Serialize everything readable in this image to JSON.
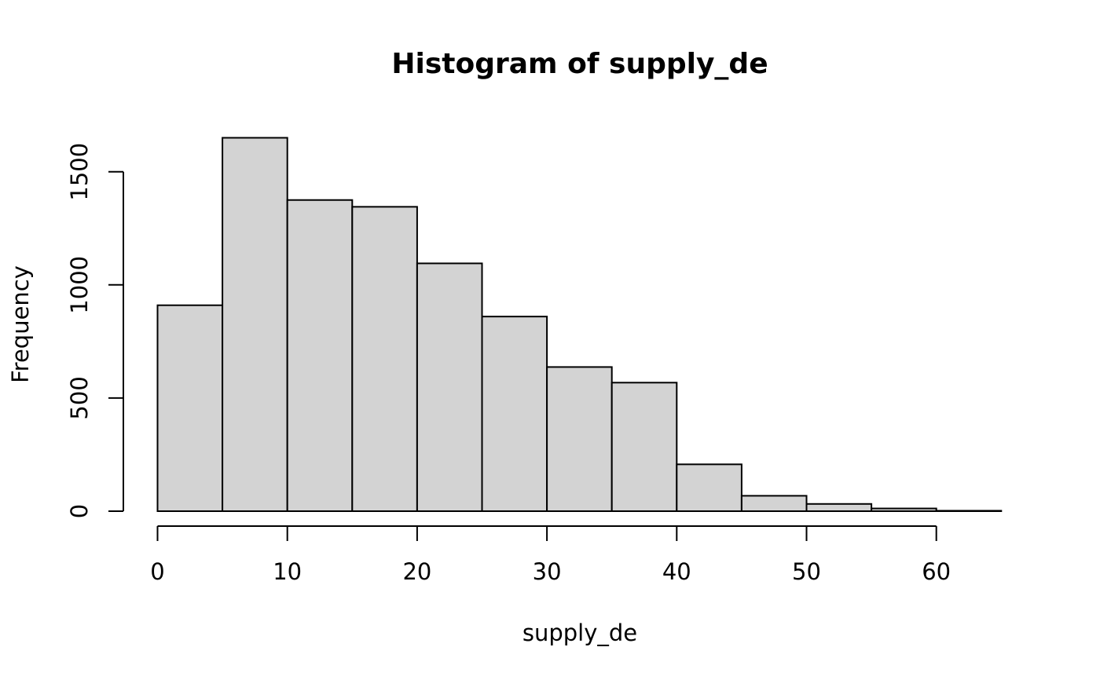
{
  "chart_data": {
    "type": "bar",
    "subtype": "histogram",
    "title": "Histogram of supply_de",
    "xlabel": "supply_de",
    "ylabel": "Frequency",
    "bins": [
      {
        "x0": 0,
        "x1": 5,
        "count": 910
      },
      {
        "x0": 5,
        "x1": 10,
        "count": 1650
      },
      {
        "x0": 10,
        "x1": 15,
        "count": 1375
      },
      {
        "x0": 15,
        "x1": 20,
        "count": 1345
      },
      {
        "x0": 20,
        "x1": 25,
        "count": 1095
      },
      {
        "x0": 25,
        "x1": 30,
        "count": 860
      },
      {
        "x0": 30,
        "x1": 35,
        "count": 637
      },
      {
        "x0": 35,
        "x1": 40,
        "count": 568
      },
      {
        "x0": 40,
        "x1": 45,
        "count": 207
      },
      {
        "x0": 45,
        "x1": 50,
        "count": 68
      },
      {
        "x0": 50,
        "x1": 55,
        "count": 32
      },
      {
        "x0": 55,
        "x1": 60,
        "count": 12
      },
      {
        "x0": 60,
        "x1": 65,
        "count": 2
      }
    ],
    "xticks": [
      0,
      10,
      20,
      30,
      40,
      50,
      60
    ],
    "yticks": [
      0,
      500,
      1000,
      1500
    ],
    "xlim": [
      0,
      65
    ],
    "ylim": [
      0,
      1650
    ],
    "grid": false,
    "legend": "none",
    "bar_fill": "#d3d3d3",
    "bar_stroke": "#000000"
  }
}
